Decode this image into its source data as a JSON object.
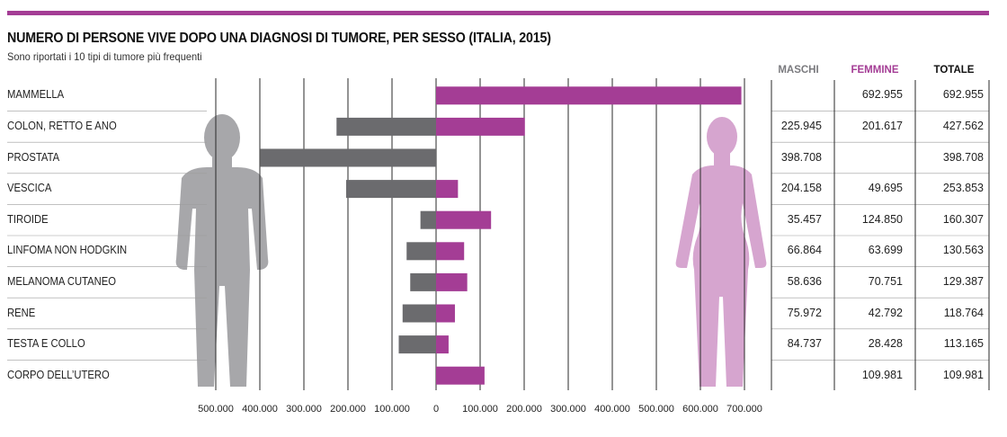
{
  "header": {
    "title": "NUMERO DI PERSONE VIVE DOPO UNA DIAGNOSI DI TUMORE, PER SESSO (ITALIA, 2015)",
    "subtitle": "Sono riportati i 10 tipi di tumore più frequenti"
  },
  "table": {
    "col_maschi": "MASCHI",
    "col_femmine": "FEMMINE",
    "col_totale": "TOTALE"
  },
  "colors": {
    "accent": "#a43d95",
    "maschi_bar": "#6b6b6e",
    "femmine_bar": "#a43d95",
    "male_silhouette": "#a7a7aa",
    "female_silhouette": "#d6a5cf",
    "gridline": "#2a2a2a",
    "row_rule": "#9c9c9c"
  },
  "chart_data": {
    "type": "bar",
    "orientation": "horizontal-diverging",
    "title": "NUMERO DI PERSONE VIVE DOPO UNA DIAGNOSI DI TUMORE, PER SESSO (ITALIA, 2015)",
    "subtitle": "Sono riportati i 10 tipi di tumore più frequenti",
    "categories": [
      "MAMMELLA",
      "COLON, RETTO E ANO",
      "PROSTATA",
      "VESCICA",
      "TIROIDE",
      "LINFOMA NON HODGKIN",
      "MELANOMA CUTANEO",
      "RENE",
      "TESTA E COLLO",
      "CORPO DELL’UTERO"
    ],
    "series": [
      {
        "name": "MASCHI",
        "direction": "left",
        "values": [
          null,
          225945,
          398708,
          204158,
          35457,
          66864,
          58636,
          75972,
          84737,
          null
        ],
        "labels": [
          "",
          "225.945",
          "398.708",
          "204.158",
          "35.457",
          "66.864",
          "58.636",
          "75.972",
          "84.737",
          ""
        ]
      },
      {
        "name": "FEMMINE",
        "direction": "right",
        "values": [
          692955,
          201617,
          null,
          49695,
          124850,
          63699,
          70751,
          42792,
          28428,
          109981
        ],
        "labels": [
          "692.955",
          "201.617",
          "",
          "49.695",
          "124.850",
          "63.699",
          "70.751",
          "42.792",
          "28.428",
          "109.981"
        ]
      },
      {
        "name": "TOTALE",
        "values": [
          692955,
          427562,
          398708,
          253853,
          160307,
          130563,
          129387,
          118764,
          113165,
          109981
        ],
        "labels": [
          "692.955",
          "427.562",
          "398.708",
          "253.853",
          "160.307",
          "130.563",
          "129.387",
          "118.764",
          "113.165",
          "109.981"
        ]
      }
    ],
    "xlim_left": [
      0,
      500000
    ],
    "xlim_right": [
      0,
      700000
    ],
    "x_ticks_left": [
      "500.000",
      "400.000",
      "300.000",
      "200.000",
      "100.000"
    ],
    "x_ticks_right": [
      "0",
      "100.000",
      "200.000",
      "300.000",
      "400.000",
      "500.000",
      "600.000",
      "700.000"
    ],
    "x_tick_values_left": [
      500000,
      400000,
      300000,
      200000,
      100000
    ],
    "x_tick_values_right": [
      0,
      100000,
      200000,
      300000,
      400000,
      500000,
      600000,
      700000
    ],
    "grid": true,
    "legend": "column headers top-right"
  }
}
